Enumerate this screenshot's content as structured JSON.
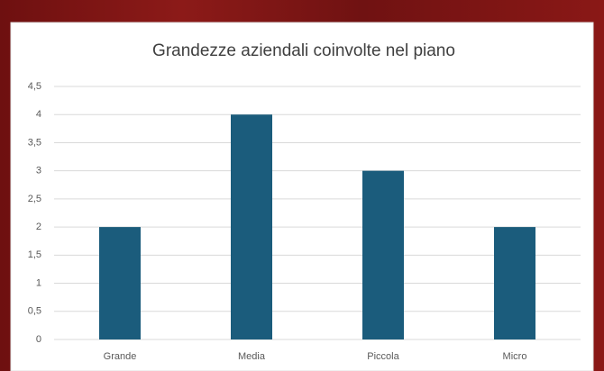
{
  "chart_data": {
    "type": "bar",
    "title": "Grandezze aziendali coinvolte nel piano",
    "categories": [
      "Grande",
      "Media",
      "Piccola",
      "Micro"
    ],
    "values": [
      2,
      4,
      3,
      2
    ],
    "color": "#1b5c7c",
    "ylim": [
      0,
      4.5
    ],
    "yticks": [
      0,
      {
        "value": 0.5,
        "label": "0,5"
      },
      1,
      {
        "value": 1.5,
        "label": "1,5"
      },
      2,
      {
        "value": 2.5,
        "label": "2,5"
      },
      3,
      {
        "value": 3.5,
        "label": "3,5"
      },
      4,
      {
        "value": 4.5,
        "label": "4,5"
      }
    ],
    "grid": true
  }
}
